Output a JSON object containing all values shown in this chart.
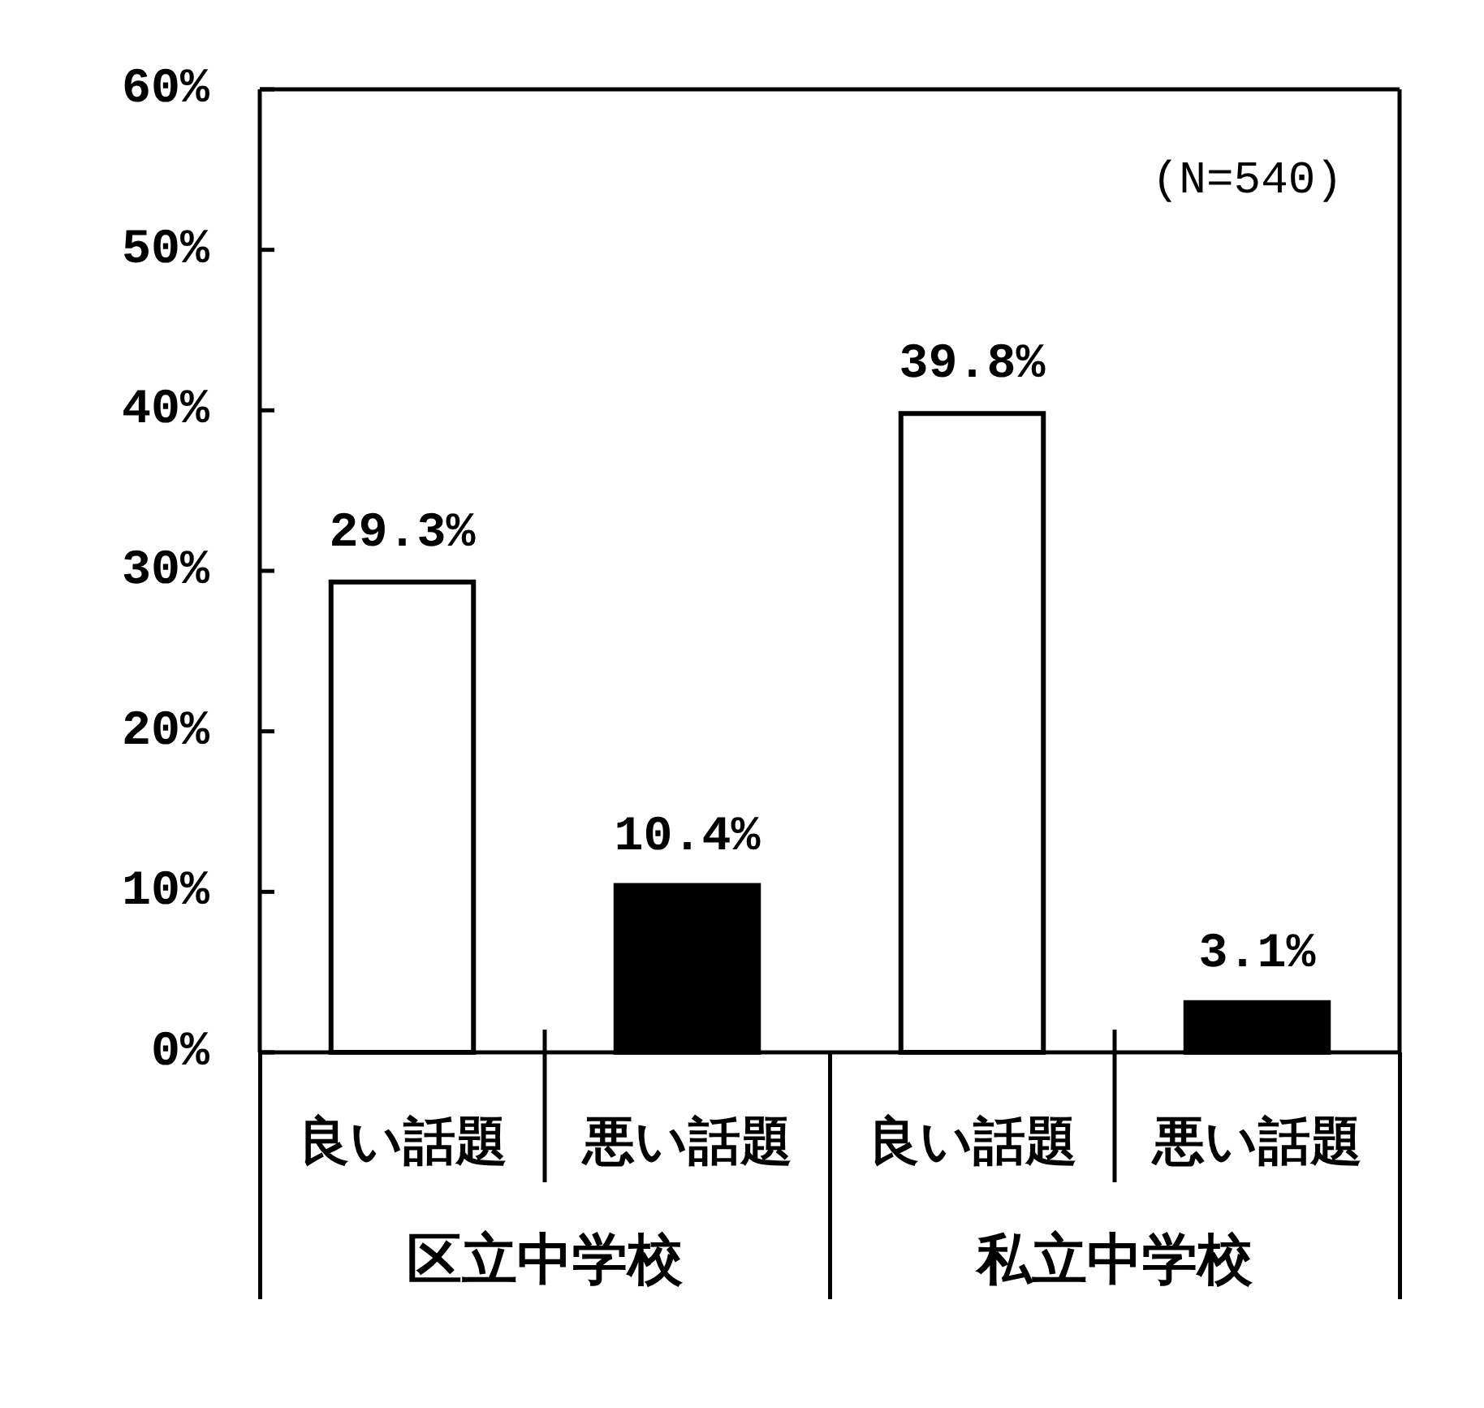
{
  "chart_data": {
    "type": "bar",
    "categories": [
      "区立中学校",
      "私立中学校"
    ],
    "series": [
      {
        "name": "良い話題",
        "color": "#ffffff",
        "values": [
          29.3,
          39.8
        ],
        "value_labels": [
          "29.3%",
          "39.8%"
        ]
      },
      {
        "name": "悪い話題",
        "color": "#000000",
        "values": [
          10.4,
          3.1
        ],
        "value_labels": [
          "10.4%",
          "3.1%"
        ]
      }
    ],
    "ylim": [
      0,
      60
    ],
    "yticks": [
      {
        "value": 0,
        "label": "0%"
      },
      {
        "value": 10,
        "label": "10%"
      },
      {
        "value": 20,
        "label": "20%"
      },
      {
        "value": 30,
        "label": "30%"
      },
      {
        "value": 40,
        "label": "40%"
      },
      {
        "value": 50,
        "label": "50%"
      },
      {
        "value": 60,
        "label": "60%"
      }
    ],
    "annotations": [
      "(N=540)"
    ]
  }
}
